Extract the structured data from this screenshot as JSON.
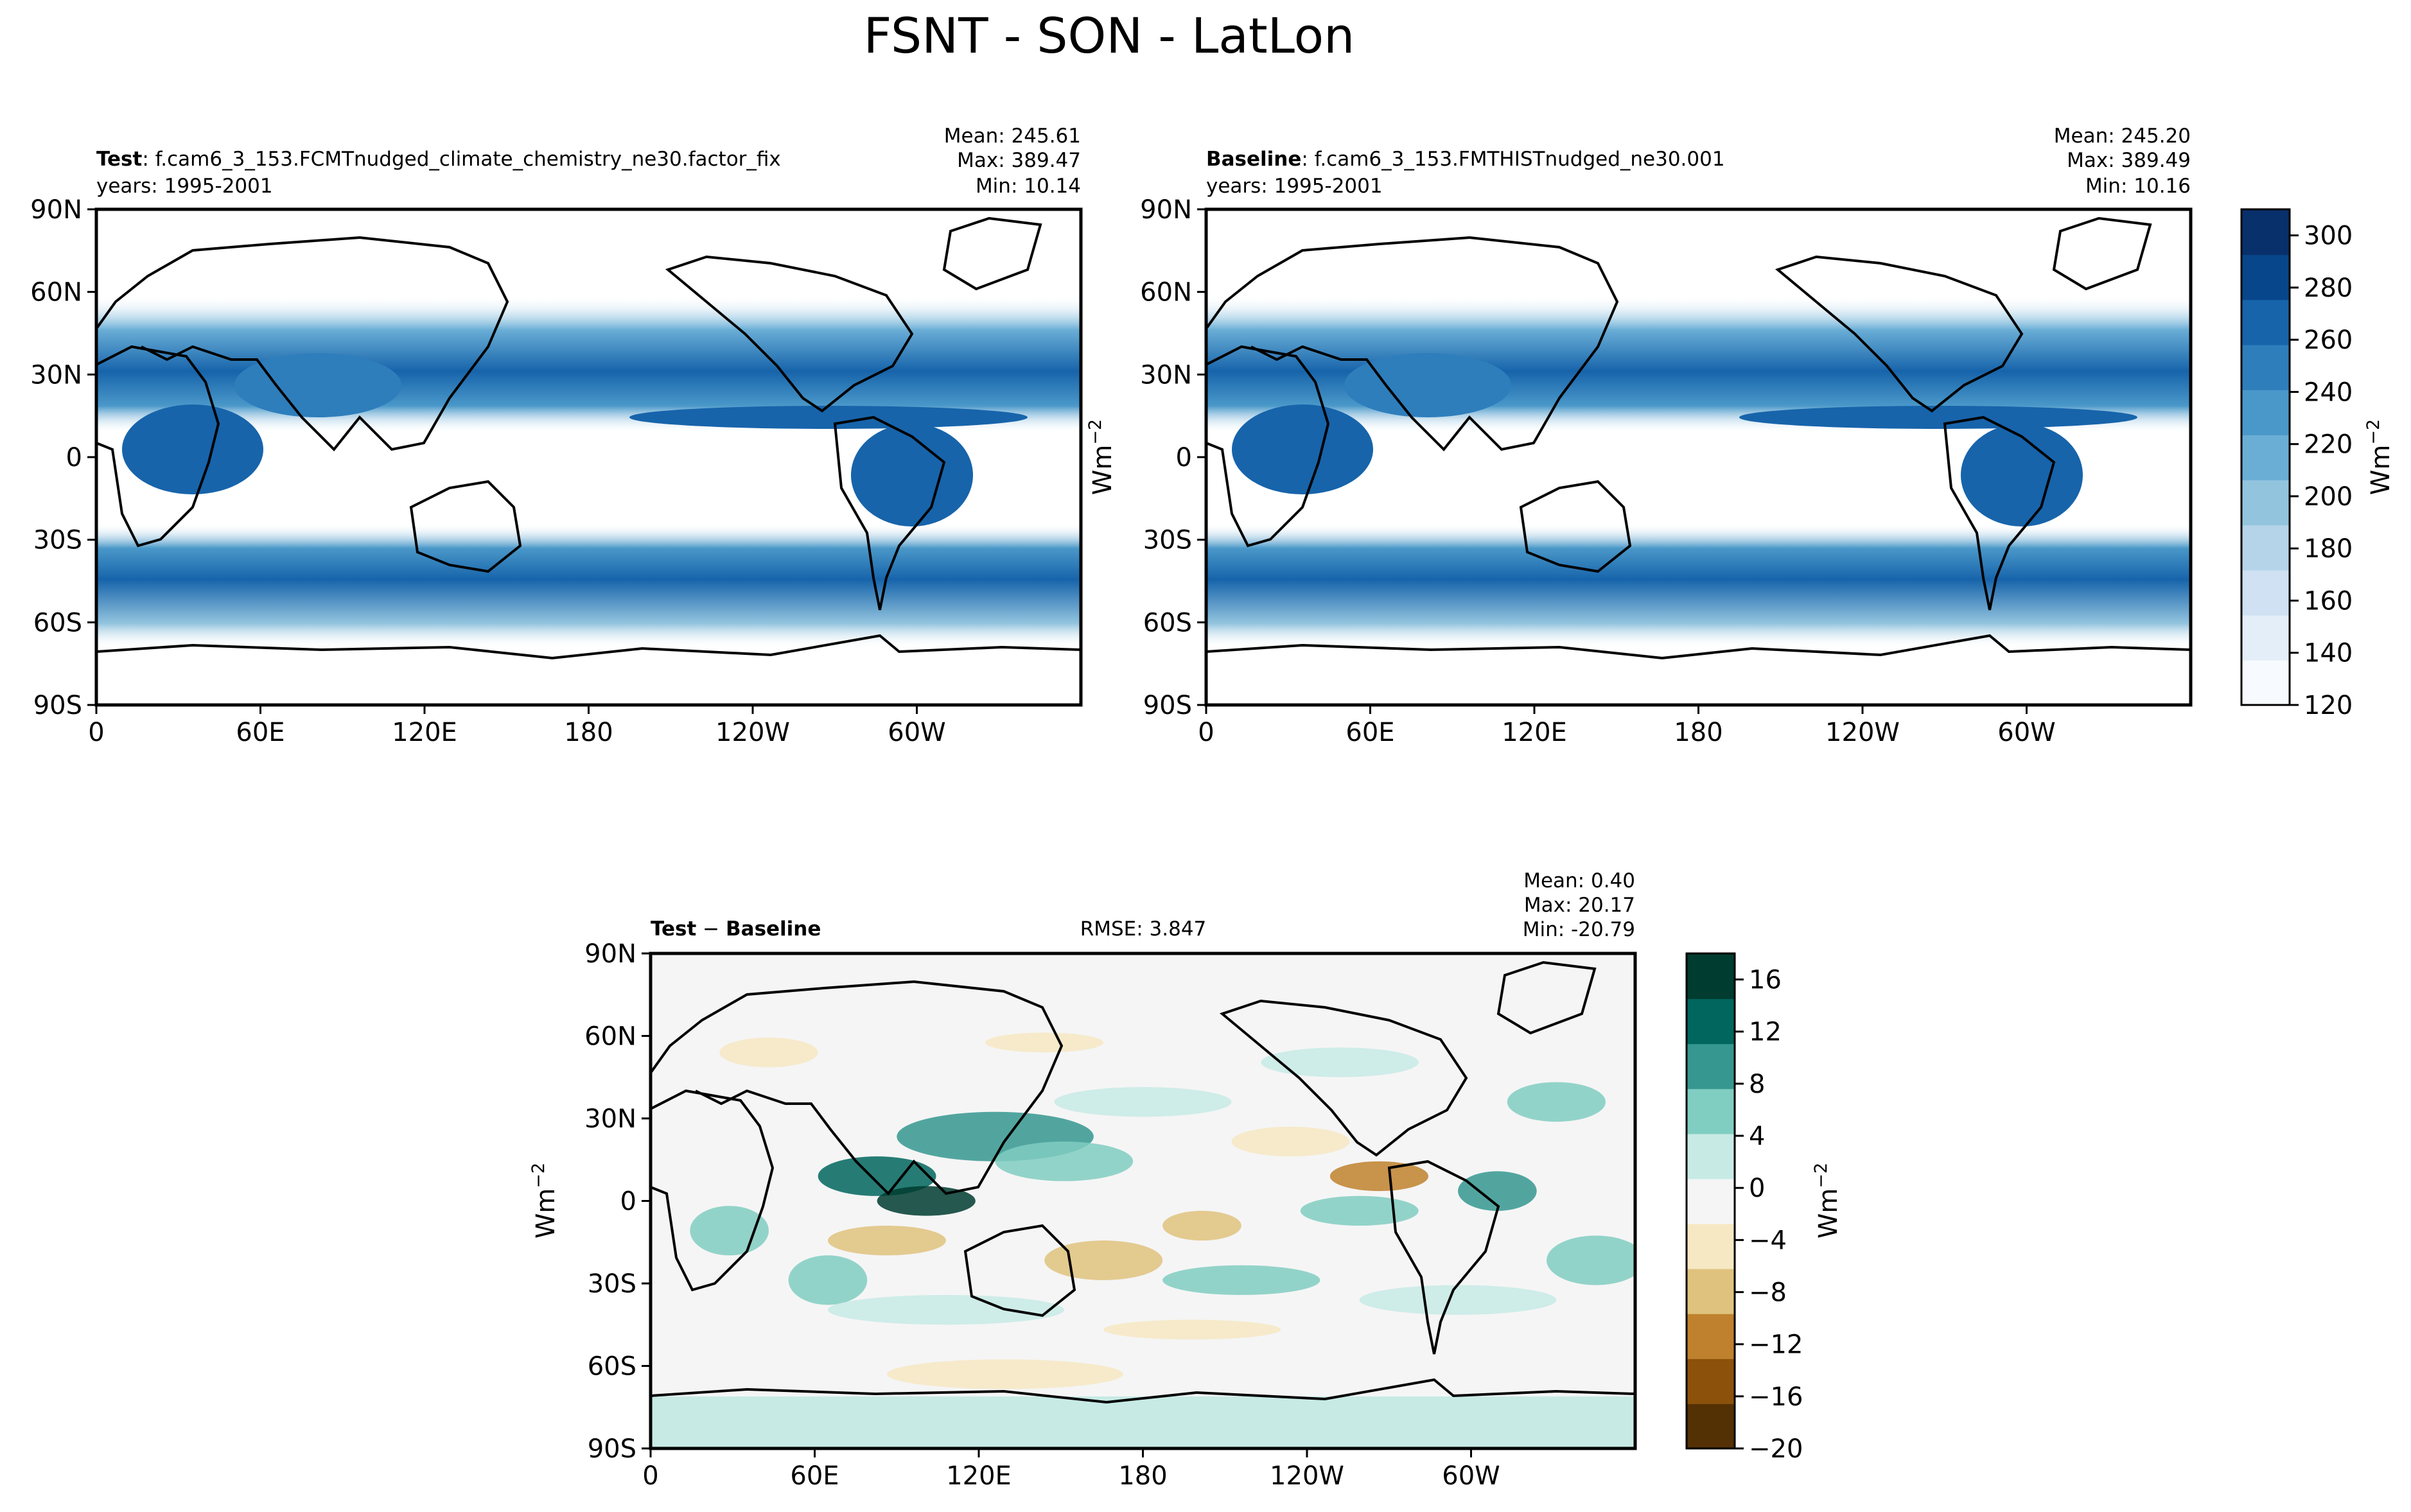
{
  "figure_title": "FSNT - SON - LatLon",
  "colors": {
    "land_outline": "#000000",
    "abs_cmap": [
      "#f7fbff",
      "#e3eef9",
      "#cfe1f2",
      "#b5d4e9",
      "#93c4de",
      "#6aaed6",
      "#4a98c9",
      "#2e7ebc",
      "#1764ab",
      "#08468b",
      "#08306b"
    ],
    "diff_cmap": [
      "#543005",
      "#8c510a",
      "#bf812d",
      "#dfc27d",
      "#f6e8c3",
      "#f5f5f5",
      "#c7eae5",
      "#80cdc1",
      "#35978f",
      "#01665e",
      "#003c30"
    ]
  },
  "panels": {
    "test": {
      "label_bold": "Test",
      "label_rest": ": f.cam6_3_153.FCMTnudged_climate_chemistry_ne30.factor_fix",
      "years": "years: 1995-2001",
      "mean": "Mean: 245.61",
      "max": "Max: 389.47",
      "min": "Min: 10.14"
    },
    "baseline": {
      "label_bold": "Baseline",
      "label_rest": ": f.cam6_3_153.FMTHISTnudged_ne30.001",
      "years": "years: 1995-2001",
      "mean": "Mean: 245.20",
      "max": "Max: 389.49",
      "min": "Min: 10.16"
    },
    "diff": {
      "label_bold_a": "Test",
      "label_sep": " − ",
      "label_bold_b": "Baseline",
      "rmse": "RMSE: 3.847",
      "mean": "Mean:  0.40",
      "max": "Max: 20.17",
      "min": "Min: -20.79"
    }
  },
  "unit_label": "Wm",
  "unit_exp": "−2",
  "chart_data": [
    {
      "type": "heatmap",
      "title": "Test",
      "variable": "FSNT",
      "x_ticks": [
        "0",
        "60E",
        "120E",
        "180",
        "120W",
        "60W"
      ],
      "y_ticks": [
        "90N",
        "60N",
        "30N",
        "0",
        "30S",
        "60S",
        "90S"
      ],
      "xlim": [
        0,
        360
      ],
      "ylim": [
        -90,
        90
      ],
      "colorbar": {
        "ticks": [
          120,
          140,
          160,
          180,
          200,
          220,
          240,
          260,
          280,
          300
        ],
        "range": [
          120,
          310
        ],
        "cmap": "Blues",
        "label": "Wm−2"
      },
      "stats": {
        "mean": 245.61,
        "max": 389.47,
        "min": 10.14
      }
    },
    {
      "type": "heatmap",
      "title": "Baseline",
      "variable": "FSNT",
      "x_ticks": [
        "0",
        "60E",
        "120E",
        "180",
        "120W",
        "60W"
      ],
      "y_ticks": [
        "90N",
        "60N",
        "30N",
        "0",
        "30S",
        "60S",
        "90S"
      ],
      "xlim": [
        0,
        360
      ],
      "ylim": [
        -90,
        90
      ],
      "colorbar": {
        "ticks": [
          120,
          140,
          160,
          180,
          200,
          220,
          240,
          260,
          280,
          300
        ],
        "range": [
          120,
          310
        ],
        "cmap": "Blues",
        "label": "Wm−2"
      },
      "stats": {
        "mean": 245.2,
        "max": 389.49,
        "min": 10.16
      }
    },
    {
      "type": "heatmap",
      "title": "Test − Baseline",
      "variable": "FSNT difference",
      "x_ticks": [
        "0",
        "60E",
        "120E",
        "180",
        "120W",
        "60W"
      ],
      "y_ticks": [
        "90N",
        "60N",
        "30N",
        "0",
        "30S",
        "60S",
        "90S"
      ],
      "xlim": [
        0,
        360
      ],
      "ylim": [
        -90,
        90
      ],
      "colorbar": {
        "ticks": [
          -20,
          -16,
          -12,
          -8,
          -4,
          0,
          4,
          8,
          12,
          16
        ],
        "range": [
          -20,
          18
        ],
        "cmap": "BrBG",
        "label": "Wm−2"
      },
      "stats": {
        "mean": 0.4,
        "max": 20.17,
        "min": -20.79,
        "rmse": 3.847
      }
    }
  ]
}
